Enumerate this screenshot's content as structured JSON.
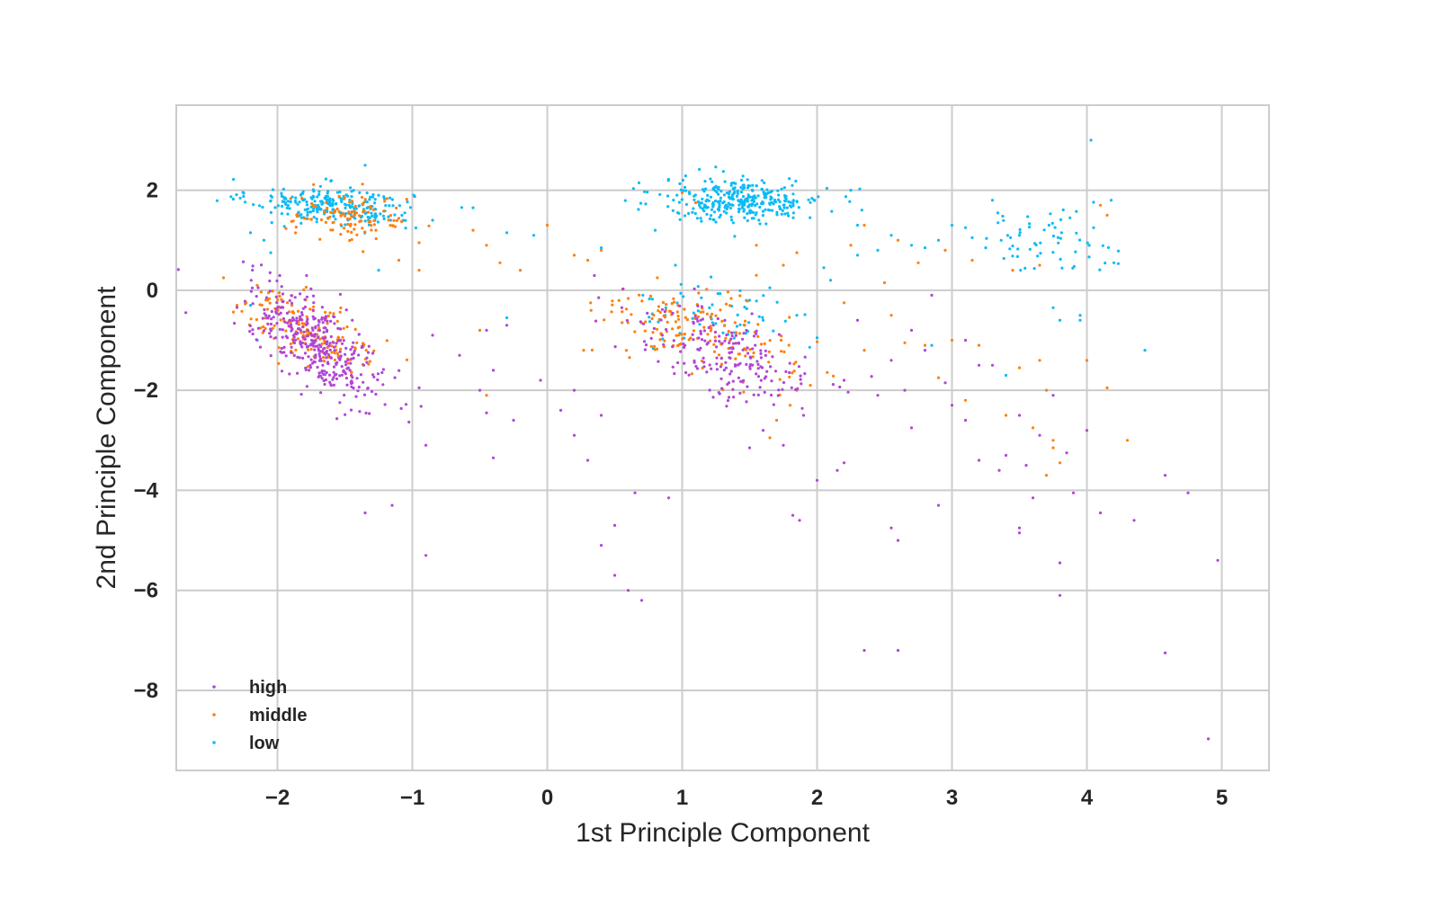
{
  "colors": {
    "high": "#b146d6",
    "middle": "#ff7f0e",
    "low": "#0dbbf5",
    "grid": "#cccccc",
    "text": "#262626"
  },
  "chart_data": {
    "type": "scatter",
    "title": "",
    "xlabel": "1st Principle Component",
    "ylabel": "2nd Principle Component",
    "xlim": [
      -2.75,
      5.35
    ],
    "ylim": [
      -9.6,
      3.7
    ],
    "xticks": [
      -2,
      -1,
      0,
      1,
      2,
      3,
      4,
      5
    ],
    "yticks": [
      2,
      0,
      -2,
      -4,
      -6,
      -8
    ],
    "grid": true,
    "legend_position": "lower-left",
    "tick_labels": {
      "x": [
        "−2",
        "−1",
        "0",
        "1",
        "2",
        "3",
        "4",
        "5"
      ],
      "y": [
        "2",
        "0",
        "−2",
        "−4",
        "−6",
        "−8"
      ]
    },
    "series": [
      {
        "name": "high",
        "color": "#b146d6",
        "clusters": [
          {
            "count": 380,
            "center": [
              -1.7,
              -1.1
            ],
            "spread": [
              0.25,
              0.6
            ],
            "corr": -0.75
          },
          {
            "count": 200,
            "center": [
              1.3,
              -1.3
            ],
            "spread": [
              0.35,
              0.55
            ],
            "corr": -0.6
          }
        ],
        "points": [
          [
            -0.9,
            -5.3
          ],
          [
            -1.35,
            -4.45
          ],
          [
            -1.15,
            -4.3
          ],
          [
            0.7,
            -6.2
          ],
          [
            0.6,
            -6.0
          ],
          [
            0.5,
            -5.7
          ],
          [
            0.4,
            -5.1
          ],
          [
            0.5,
            -4.7
          ],
          [
            0.65,
            -4.05
          ],
          [
            0.9,
            -4.15
          ],
          [
            0.3,
            -3.4
          ],
          [
            -0.4,
            -3.35
          ],
          [
            2.35,
            -7.2
          ],
          [
            2.6,
            -7.2
          ],
          [
            2.55,
            -4.75
          ],
          [
            2.6,
            -5.0
          ],
          [
            2.9,
            -4.3
          ],
          [
            3.5,
            -4.75
          ],
          [
            3.5,
            -4.85
          ],
          [
            3.8,
            -5.45
          ],
          [
            3.8,
            -6.1
          ],
          [
            4.1,
            -4.45
          ],
          [
            4.35,
            -4.6
          ],
          [
            4.58,
            -3.7
          ],
          [
            4.58,
            -7.25
          ],
          [
            4.75,
            -4.05
          ],
          [
            4.9,
            -8.97
          ],
          [
            4.97,
            -5.4
          ],
          [
            1.82,
            -4.5
          ],
          [
            1.87,
            -4.6
          ],
          [
            2.0,
            -3.8
          ],
          [
            2.15,
            -3.6
          ],
          [
            2.2,
            -3.45
          ],
          [
            -0.5,
            -2.0
          ],
          [
            -0.45,
            -2.45
          ],
          [
            -0.25,
            -2.6
          ],
          [
            0.2,
            -2.0
          ],
          [
            0.1,
            -2.4
          ],
          [
            0.2,
            -2.9
          ],
          [
            0.4,
            -2.5
          ],
          [
            -0.05,
            -1.8
          ],
          [
            -0.4,
            -1.6
          ],
          [
            -0.45,
            -0.8
          ],
          [
            -0.3,
            -0.7
          ],
          [
            -0.85,
            -0.9
          ],
          [
            -0.65,
            -1.3
          ],
          [
            -0.95,
            -1.95
          ],
          [
            -0.9,
            -3.1
          ],
          [
            3.4,
            -3.3
          ],
          [
            3.55,
            -3.5
          ],
          [
            3.65,
            -2.9
          ],
          [
            3.85,
            -3.25
          ],
          [
            3.0,
            -2.3
          ],
          [
            3.1,
            -2.6
          ],
          [
            2.7,
            -2.75
          ],
          [
            3.2,
            -3.4
          ],
          [
            3.35,
            -3.6
          ],
          [
            3.6,
            -4.15
          ],
          [
            3.9,
            -4.05
          ],
          [
            4.0,
            -2.8
          ],
          [
            3.2,
            -1.5
          ],
          [
            3.5,
            -2.5
          ],
          [
            2.7,
            -0.8
          ],
          [
            2.55,
            -1.4
          ],
          [
            2.45,
            -2.1
          ],
          [
            2.2,
            -1.8
          ],
          [
            2.3,
            -0.6
          ],
          [
            2.8,
            -1.2
          ],
          [
            2.95,
            -1.85
          ],
          [
            3.1,
            -1.0
          ],
          [
            1.6,
            -2.8
          ],
          [
            1.75,
            -3.1
          ],
          [
            1.5,
            -3.15
          ],
          [
            1.9,
            -2.5
          ],
          [
            2.85,
            -0.1
          ],
          [
            2.65,
            -2.0
          ],
          [
            3.75,
            -2.1
          ],
          [
            3.3,
            -1.5
          ]
        ]
      },
      {
        "name": "middle",
        "color": "#ff7f0e",
        "clusters": [
          {
            "count": 160,
            "center": [
              -1.75,
              -0.8
            ],
            "spread": [
              0.25,
              0.4
            ],
            "corr": -0.6
          },
          {
            "count": 110,
            "center": [
              -1.45,
              1.45
            ],
            "spread": [
              0.22,
              0.25
            ],
            "corr": -0.2
          },
          {
            "count": 170,
            "center": [
              1.1,
              -0.8
            ],
            "spread": [
              0.35,
              0.45
            ],
            "corr": -0.5
          }
        ],
        "points": [
          [
            -2.4,
            0.25
          ],
          [
            -2.3,
            -0.3
          ],
          [
            -2.15,
            0.1
          ],
          [
            -0.55,
            1.2
          ],
          [
            -0.45,
            0.9
          ],
          [
            -0.35,
            0.55
          ],
          [
            -0.2,
            0.4
          ],
          [
            0.0,
            1.3
          ],
          [
            0.2,
            0.7
          ],
          [
            0.3,
            0.6
          ],
          [
            0.4,
            0.8
          ],
          [
            0.27,
            -1.2
          ],
          [
            -0.45,
            -2.1
          ],
          [
            -0.5,
            -0.8
          ],
          [
            -0.95,
            0.95
          ],
          [
            -0.95,
            0.4
          ],
          [
            -1.1,
            0.6
          ],
          [
            2.2,
            -0.25
          ],
          [
            2.35,
            -1.2
          ],
          [
            2.55,
            -0.5
          ],
          [
            2.65,
            -1.05
          ],
          [
            2.8,
            -1.1
          ],
          [
            2.9,
            -1.75
          ],
          [
            3.0,
            -1.0
          ],
          [
            3.1,
            -2.2
          ],
          [
            3.2,
            -1.1
          ],
          [
            3.4,
            -2.5
          ],
          [
            3.5,
            -1.55
          ],
          [
            3.6,
            -2.75
          ],
          [
            3.65,
            -1.4
          ],
          [
            3.7,
            -2.0
          ],
          [
            3.75,
            -3.0
          ],
          [
            3.8,
            -3.45
          ],
          [
            3.7,
            -3.7
          ],
          [
            3.65,
            0.5
          ],
          [
            4.0,
            -1.4
          ],
          [
            4.15,
            -1.95
          ],
          [
            4.3,
            -3.0
          ],
          [
            4.15,
            1.5
          ],
          [
            4.1,
            1.7
          ],
          [
            2.6,
            1.0
          ],
          [
            2.95,
            0.8
          ],
          [
            3.15,
            0.6
          ],
          [
            3.45,
            0.4
          ],
          [
            2.5,
            0.15
          ],
          [
            2.75,
            0.55
          ],
          [
            1.65,
            -2.95
          ],
          [
            1.7,
            -2.6
          ],
          [
            1.8,
            -2.3
          ],
          [
            1.85,
            -2.0
          ],
          [
            1.95,
            -1.9
          ],
          [
            1.55,
            0.3
          ],
          [
            1.75,
            0.5
          ],
          [
            1.85,
            0.75
          ],
          [
            1.55,
            0.9
          ],
          [
            1.0,
            1.95
          ],
          [
            1.1,
            1.75
          ],
          [
            2.35,
            1.3
          ],
          [
            2.25,
            0.9
          ],
          [
            3.75,
            -3.15
          ]
        ]
      },
      {
        "name": "low",
        "color": "#0dbbf5",
        "clusters": [
          {
            "count": 260,
            "center": [
              -1.6,
              1.7
            ],
            "spread": [
              0.3,
              0.2
            ],
            "corr": -0.3
          },
          {
            "count": 330,
            "center": [
              1.45,
              1.8
            ],
            "spread": [
              0.3,
              0.22
            ],
            "corr": 0.0
          },
          {
            "count": 60,
            "center": [
              3.7,
              1.0
            ],
            "spread": [
              0.25,
              0.3
            ],
            "corr": 0.0
          },
          {
            "count": 60,
            "center": [
              1.25,
              -0.5
            ],
            "spread": [
              0.3,
              0.35
            ],
            "corr": -0.3
          }
        ],
        "points": [
          [
            4.03,
            3.0
          ],
          [
            4.43,
            -1.2
          ],
          [
            4.2,
            0.55
          ],
          [
            4.18,
            1.8
          ],
          [
            4.05,
            1.25
          ],
          [
            3.95,
            -0.5
          ],
          [
            3.95,
            -0.6
          ],
          [
            3.75,
            -0.35
          ],
          [
            3.8,
            -0.6
          ],
          [
            3.1,
            1.25
          ],
          [
            3.0,
            1.3
          ],
          [
            2.9,
            1.0
          ],
          [
            2.8,
            0.85
          ],
          [
            2.7,
            0.9
          ],
          [
            2.55,
            1.1
          ],
          [
            2.45,
            0.8
          ],
          [
            2.3,
            0.7
          ],
          [
            2.1,
            0.2
          ],
          [
            2.25,
            2.0
          ],
          [
            2.3,
            1.3
          ],
          [
            3.4,
            -1.7
          ],
          [
            2.85,
            -1.1
          ],
          [
            3.5,
            1.1
          ],
          [
            3.15,
            1.05
          ],
          [
            3.25,
            0.85
          ],
          [
            3.3,
            1.8
          ],
          [
            -2.2,
            1.15
          ],
          [
            -2.1,
            1.0
          ],
          [
            -2.05,
            0.75
          ],
          [
            -2.15,
            -1.0
          ],
          [
            -2.2,
            -0.3
          ],
          [
            -1.25,
            0.4
          ],
          [
            -1.25,
            1.9
          ],
          [
            -1.35,
            2.5
          ],
          [
            -0.85,
            1.4
          ],
          [
            -0.55,
            1.65
          ],
          [
            -0.3,
            1.15
          ],
          [
            -0.3,
            -0.55
          ],
          [
            -0.1,
            1.1
          ],
          [
            0.4,
            0.85
          ],
          [
            1.5,
            -0.2
          ],
          [
            1.65,
            0.05
          ],
          [
            1.85,
            -0.5
          ],
          [
            2.0,
            -0.95
          ],
          [
            1.6,
            -0.6
          ],
          [
            2.05,
            0.45
          ],
          [
            0.8,
            1.2
          ],
          [
            0.95,
            0.5
          ]
        ]
      }
    ]
  }
}
